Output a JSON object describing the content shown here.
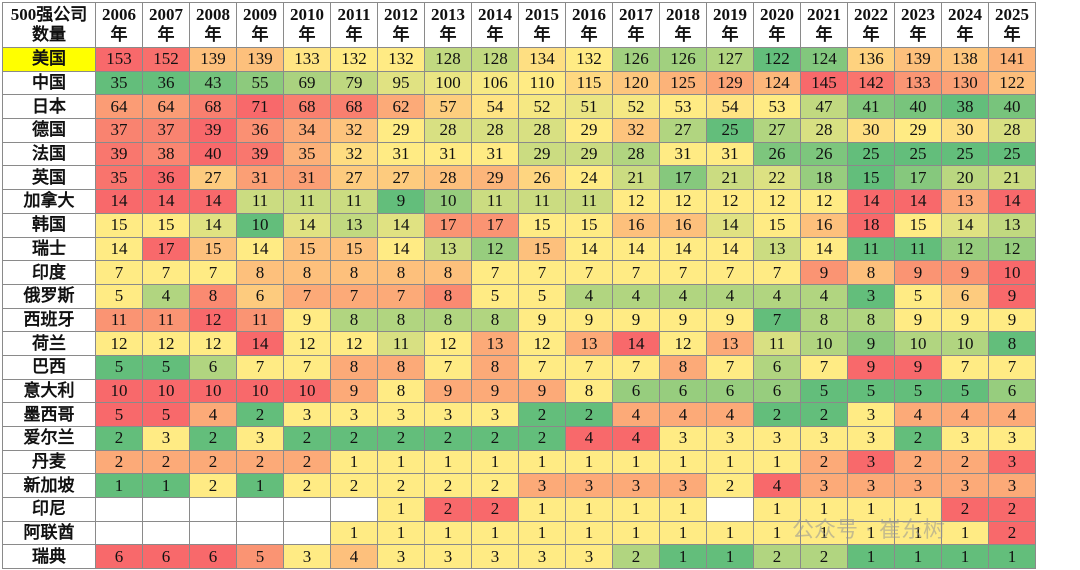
{
  "table": {
    "corner": "500强公司数量",
    "columns": [
      "2006年",
      "2007年",
      "2008年",
      "2009年",
      "2010年",
      "2011年",
      "2012年",
      "2013年",
      "2014年",
      "2015年",
      "2016年",
      "2017年",
      "2018年",
      "2019年",
      "2020年",
      "2021年",
      "2022年",
      "2023年",
      "2024年",
      "2025年"
    ],
    "rows": [
      {
        "country": "美国",
        "values": [
          153,
          152,
          139,
          139,
          133,
          132,
          132,
          128,
          128,
          134,
          132,
          126,
          126,
          127,
          122,
          124,
          136,
          139,
          138,
          141
        ]
      },
      {
        "country": "中国",
        "values": [
          35,
          36,
          43,
          55,
          69,
          79,
          95,
          100,
          106,
          110,
          115,
          120,
          125,
          129,
          124,
          145,
          142,
          133,
          130,
          122
        ]
      },
      {
        "country": "日本",
        "values": [
          64,
          64,
          68,
          71,
          68,
          68,
          62,
          57,
          54,
          52,
          51,
          52,
          53,
          54,
          53,
          47,
          41,
          40,
          38,
          40
        ]
      },
      {
        "country": "德国",
        "values": [
          37,
          37,
          39,
          36,
          34,
          32,
          29,
          28,
          28,
          28,
          29,
          32,
          27,
          25,
          27,
          28,
          30,
          29,
          30,
          28
        ]
      },
      {
        "country": "法国",
        "values": [
          39,
          38,
          40,
          39,
          35,
          32,
          31,
          31,
          31,
          29,
          29,
          28,
          31,
          31,
          26,
          26,
          25,
          25,
          25,
          25
        ]
      },
      {
        "country": "英国",
        "values": [
          35,
          36,
          27,
          31,
          31,
          27,
          27,
          28,
          29,
          26,
          24,
          21,
          17,
          21,
          22,
          18,
          15,
          17,
          20,
          21
        ]
      },
      {
        "country": "加拿大",
        "values": [
          14,
          14,
          14,
          11,
          11,
          11,
          9,
          10,
          11,
          11,
          11,
          12,
          12,
          12,
          12,
          12,
          14,
          14,
          13,
          14
        ]
      },
      {
        "country": "韩国",
        "values": [
          15,
          15,
          14,
          10,
          14,
          13,
          14,
          17,
          17,
          15,
          15,
          16,
          16,
          14,
          15,
          16,
          18,
          15,
          14,
          13
        ]
      },
      {
        "country": "瑞士",
        "values": [
          14,
          17,
          15,
          14,
          15,
          15,
          14,
          13,
          12,
          15,
          14,
          14,
          14,
          14,
          13,
          14,
          11,
          11,
          12,
          12
        ]
      },
      {
        "country": "印度",
        "values": [
          7,
          7,
          7,
          8,
          8,
          8,
          8,
          8,
          7,
          7,
          7,
          7,
          7,
          7,
          7,
          9,
          8,
          9,
          9,
          10
        ]
      },
      {
        "country": "俄罗斯",
        "values": [
          5,
          4,
          8,
          6,
          7,
          7,
          7,
          8,
          5,
          5,
          4,
          4,
          4,
          4,
          4,
          4,
          3,
          5,
          6,
          9
        ]
      },
      {
        "country": "西班牙",
        "values": [
          11,
          11,
          12,
          11,
          9,
          8,
          8,
          8,
          8,
          9,
          9,
          9,
          9,
          9,
          7,
          8,
          8,
          9,
          9,
          9
        ]
      },
      {
        "country": "荷兰",
        "values": [
          12,
          12,
          12,
          14,
          12,
          12,
          11,
          12,
          13,
          12,
          13,
          14,
          12,
          13,
          11,
          10,
          9,
          10,
          10,
          8
        ]
      },
      {
        "country": "巴西",
        "values": [
          5,
          5,
          6,
          7,
          7,
          8,
          8,
          7,
          8,
          7,
          7,
          7,
          8,
          7,
          6,
          7,
          9,
          9,
          7,
          7
        ]
      },
      {
        "country": "意大利",
        "values": [
          10,
          10,
          10,
          10,
          10,
          9,
          8,
          9,
          9,
          9,
          8,
          6,
          6,
          6,
          6,
          5,
          5,
          5,
          5,
          6
        ]
      },
      {
        "country": "墨西哥",
        "values": [
          5,
          5,
          4,
          2,
          3,
          3,
          3,
          3,
          3,
          2,
          2,
          4,
          4,
          4,
          2,
          2,
          3,
          4,
          4,
          4
        ]
      },
      {
        "country": "爱尔兰",
        "values": [
          2,
          3,
          2,
          3,
          2,
          2,
          2,
          2,
          2,
          2,
          4,
          4,
          3,
          3,
          3,
          3,
          3,
          2,
          3,
          3
        ]
      },
      {
        "country": "丹麦",
        "values": [
          2,
          2,
          2,
          2,
          2,
          1,
          1,
          1,
          1,
          1,
          1,
          1,
          1,
          1,
          1,
          2,
          3,
          2,
          2,
          3
        ]
      },
      {
        "country": "新加坡",
        "values": [
          1,
          1,
          2,
          1,
          2,
          2,
          2,
          2,
          2,
          3,
          3,
          3,
          3,
          2,
          4,
          3,
          3,
          3,
          3,
          3
        ]
      },
      {
        "country": "印尼",
        "values": [
          null,
          null,
          null,
          null,
          null,
          null,
          1,
          2,
          2,
          1,
          1,
          1,
          1,
          null,
          1,
          1,
          1,
          1,
          2,
          2
        ]
      },
      {
        "country": "阿联酋",
        "values": [
          null,
          null,
          null,
          null,
          null,
          1,
          1,
          1,
          1,
          1,
          1,
          1,
          1,
          1,
          1,
          1,
          1,
          1,
          1,
          2
        ]
      },
      {
        "country": "瑞典",
        "values": [
          6,
          6,
          6,
          5,
          3,
          4,
          3,
          3,
          3,
          3,
          3,
          2,
          1,
          1,
          2,
          2,
          1,
          1,
          1,
          1
        ]
      }
    ]
  },
  "watermark": "公众号 · 崔东树"
}
